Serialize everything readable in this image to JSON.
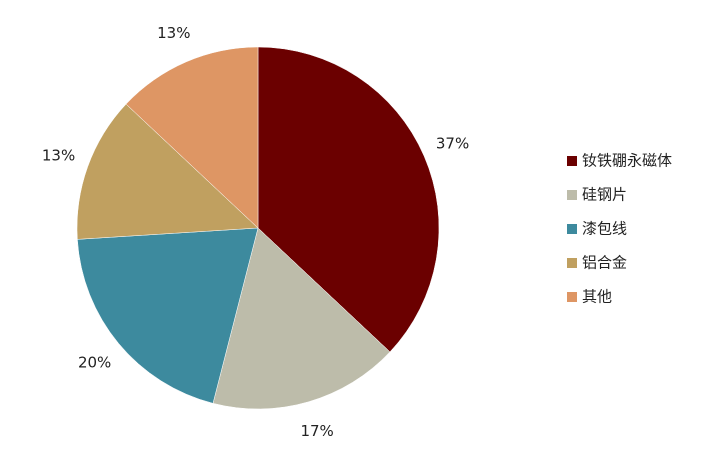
{
  "chart_data": {
    "type": "pie",
    "categories": [
      "钕铁硼永磁体",
      "硅钢片",
      "漆包线",
      "铝合金",
      "其他"
    ],
    "values": [
      37,
      17,
      20,
      13,
      13
    ],
    "value_labels": [
      "37%",
      "17%",
      "20%",
      "13%",
      "13%"
    ],
    "colors": [
      "#6b0000",
      "#bdbcaa",
      "#3d8a9e",
      "#c0a060",
      "#de9664"
    ],
    "legend": "right"
  }
}
